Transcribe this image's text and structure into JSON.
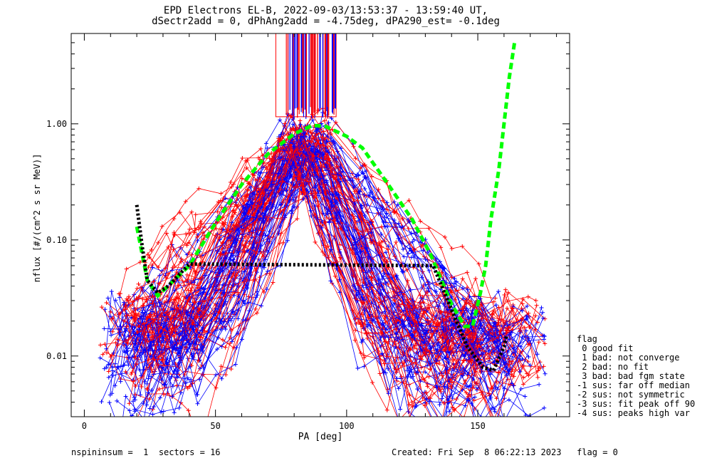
{
  "chart_data": {
    "type": "line",
    "title": "EPD Electrons EL-B, 2022-09-03/13:53:37 - 13:59:40 UT,",
    "subtitle": "dSectr2add = 0, dPhAng2add = -4.75deg, dPA290_est=  -0.1deg",
    "xlabel": "PA [deg]",
    "ylabel": "nflux [#/(cm^2 s sr MeV)]",
    "xlim": [
      -5,
      185
    ],
    "ylim": [
      0.003,
      6.0
    ],
    "yscale": "log",
    "x_ticks": [
      "0",
      "50",
      "100",
      "150"
    ],
    "y_ticks": [
      "0.01",
      "0.10",
      "1.00"
    ],
    "series": [
      {
        "color": "#00ff00",
        "style": "dashed-thick",
        "points": [
          [
            20,
            0.13
          ],
          [
            24,
            0.045
          ],
          [
            28,
            0.033
          ],
          [
            40,
            0.06
          ],
          [
            50,
            0.14
          ],
          [
            60,
            0.3
          ],
          [
            70,
            0.55
          ],
          [
            80,
            0.82
          ],
          [
            87,
            0.97
          ],
          [
            92,
            0.95
          ],
          [
            100,
            0.78
          ],
          [
            106,
            0.62
          ],
          [
            115,
            0.32
          ],
          [
            125,
            0.15
          ],
          [
            132,
            0.075
          ],
          [
            140,
            0.028
          ],
          [
            145,
            0.018
          ],
          [
            148,
            0.018
          ],
          [
            151,
            0.035
          ],
          [
            153,
            0.06
          ],
          [
            155,
            0.15
          ],
          [
            158,
            0.4
          ],
          [
            160,
            1.0
          ],
          [
            162,
            2.5
          ],
          [
            164,
            5.0
          ]
        ]
      },
      {
        "color": "#000000",
        "style": "dotted-thick",
        "points": [
          [
            20,
            0.2
          ],
          [
            22,
            0.09
          ],
          [
            24,
            0.045
          ],
          [
            28,
            0.035
          ],
          [
            32,
            0.04
          ],
          [
            40,
            0.062
          ],
          [
            133,
            0.06
          ],
          [
            140,
            0.025
          ],
          [
            146,
            0.012
          ],
          [
            152,
            0.008
          ],
          [
            156,
            0.0075
          ],
          [
            160,
            0.012
          ],
          [
            161,
            0.015
          ]
        ]
      }
    ],
    "flag_legend": {
      "title": "flag",
      "entries": [
        " 0 good fit",
        " 1 bad: not converge",
        " 2 bad: no fit",
        " 3 bad: bad fgm state",
        "-1 sus: far off median",
        "-2 sus: not symmetric",
        "-3 sus: fit peak off 90",
        "-4 sus: peaks high var"
      ]
    },
    "footer_left": "nspininsum =  1  sectors = 16",
    "footer_right": "Created: Fri Sep  8 06:22:13 2023   flag = 0",
    "colors": {
      "red": "#ff0000",
      "blue": "#0000ff",
      "green": "#00ff00",
      "black": "#000000"
    }
  }
}
